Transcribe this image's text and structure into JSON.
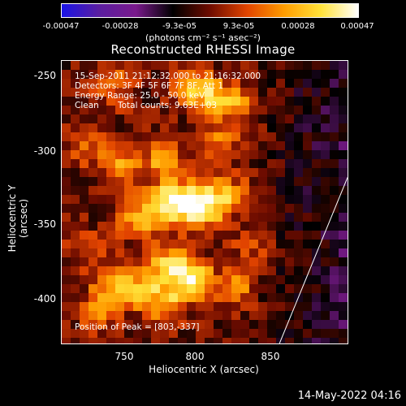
{
  "colorbar": {
    "ticks": [
      "-0.00047",
      "-0.00028",
      "-9.3e-05",
      "9.3e-05",
      "0.00028",
      "0.00047"
    ],
    "units": "(photons cm⁻² s⁻¹ asec⁻²)",
    "colors": [
      "#1a14e6",
      "#5a1ea0",
      "#7a1a8c",
      "#000000",
      "#6e0c00",
      "#e24400",
      "#ff9c00",
      "#ffe23a",
      "#ffffff"
    ]
  },
  "chart_data": {
    "type": "heatmap",
    "title": "Reconstructed RHESSI Image",
    "xlabel": "Heliocentric X (arcsec)",
    "ylabel": "Heliocentric Y (arcsec)",
    "x_ticks": [
      "750",
      "800",
      "850"
    ],
    "y_ticks": [
      "-250",
      "-300",
      "-350",
      "-400"
    ],
    "xlim": [
      708,
      897
    ],
    "ylim": [
      -432,
      -238
    ],
    "limb_line": [
      [
        852,
        -432
      ],
      [
        897,
        -318
      ]
    ],
    "peak": [
      803,
      -337
    ],
    "color_range": [
      -0.00047,
      0.00047
    ],
    "annotations": {
      "time": "15-Sep-2011 21:12:32.000 to 21:16:32.000",
      "detectors": "Detectors: 3F 4F 5F 6F 7F 8F, Att 1",
      "energy": "Energy Range: 25.0 - 50.0 keV",
      "clean": "Clean",
      "counts": "Total counts: 9.63E+03",
      "peak_text": "Position of Peak = [803,-337]"
    },
    "sources": [
      {
        "x": 800,
        "y": -337,
        "amp": 1.0,
        "sigma": 11
      },
      {
        "x": 780,
        "y": -335,
        "amp": 0.8,
        "sigma": 10
      },
      {
        "x": 748,
        "y": -310,
        "amp": 0.55,
        "sigma": 9
      },
      {
        "x": 775,
        "y": -306,
        "amp": 0.55,
        "sigma": 9
      },
      {
        "x": 760,
        "y": -345,
        "amp": 0.55,
        "sigma": 11
      },
      {
        "x": 795,
        "y": -388,
        "amp": 0.95,
        "sigma": 9
      },
      {
        "x": 778,
        "y": -378,
        "amp": 0.7,
        "sigma": 10
      },
      {
        "x": 760,
        "y": -395,
        "amp": 0.6,
        "sigma": 10
      },
      {
        "x": 740,
        "y": -392,
        "amp": 0.55,
        "sigma": 9
      },
      {
        "x": 778,
        "y": -405,
        "amp": 0.55,
        "sigma": 9
      },
      {
        "x": 732,
        "y": -412,
        "amp": 0.45,
        "sigma": 9
      },
      {
        "x": 792,
        "y": -255,
        "amp": 0.55,
        "sigma": 9
      },
      {
        "x": 806,
        "y": -262,
        "amp": 0.6,
        "sigma": 9
      },
      {
        "x": 825,
        "y": -268,
        "amp": 0.5,
        "sigma": 9
      },
      {
        "x": 812,
        "y": -292,
        "amp": 0.4,
        "sigma": 9
      },
      {
        "x": 742,
        "y": -255,
        "amp": 0.4,
        "sigma": 10
      },
      {
        "x": 725,
        "y": -298,
        "amp": 0.35,
        "sigma": 9
      },
      {
        "x": 820,
        "y": -330,
        "amp": 0.45,
        "sigma": 9
      },
      {
        "x": 822,
        "y": -395,
        "amp": 0.5,
        "sigma": 9
      },
      {
        "x": 835,
        "y": -365,
        "amp": 0.3,
        "sigma": 9
      },
      {
        "x": 725,
        "y": -368,
        "amp": 0.3,
        "sigma": 9
      }
    ]
  },
  "footer": {
    "timestamp": "14-May-2022 04:16"
  }
}
